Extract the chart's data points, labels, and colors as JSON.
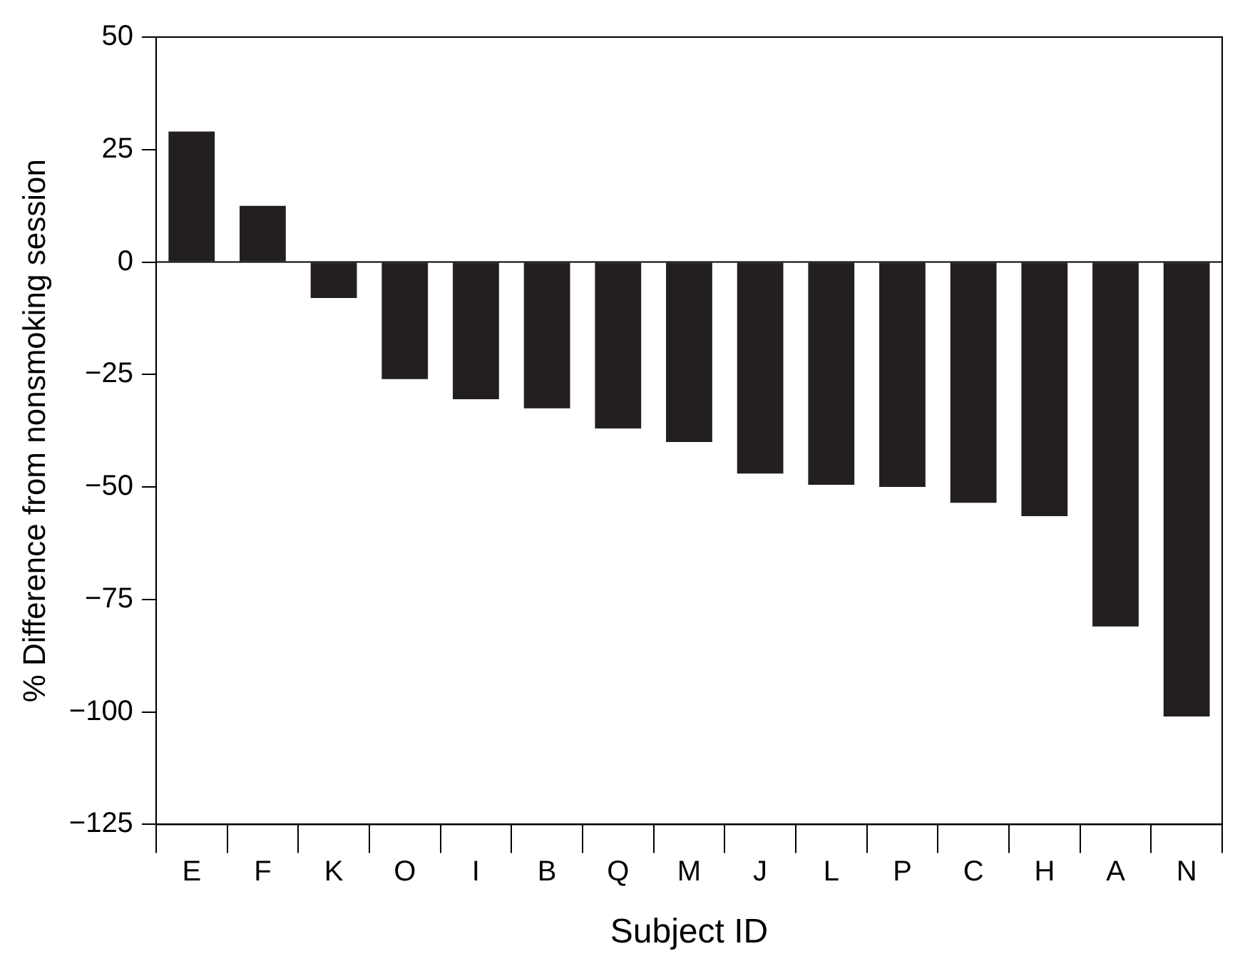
{
  "chart_data": {
    "type": "bar",
    "xlabel": "Subject ID",
    "ylabel": "% Difference from nonsmoking session",
    "categories": [
      "E",
      "F",
      "K",
      "O",
      "I",
      "B",
      "Q",
      "M",
      "J",
      "L",
      "P",
      "C",
      "H",
      "A",
      "N"
    ],
    "values": [
      29,
      12.5,
      -8,
      -26,
      -30.5,
      -32.5,
      -37,
      -40,
      -47,
      -49.5,
      -50,
      -53.5,
      -56.5,
      -81,
      -101
    ],
    "color": "#231f20",
    "ylim": [
      -125,
      50
    ],
    "yticks": [
      {
        "value": -125,
        "label": "−125"
      },
      {
        "value": -100,
        "label": "−100"
      },
      {
        "value": -75,
        "label": "−75"
      },
      {
        "value": -50,
        "label": "−50"
      },
      {
        "value": -25,
        "label": "−25"
      },
      0,
      25,
      50
    ],
    "ref_lines": [
      {
        "axis": "y",
        "value": 0,
        "color": "#000000"
      }
    ],
    "grid": false,
    "legend": false
  }
}
